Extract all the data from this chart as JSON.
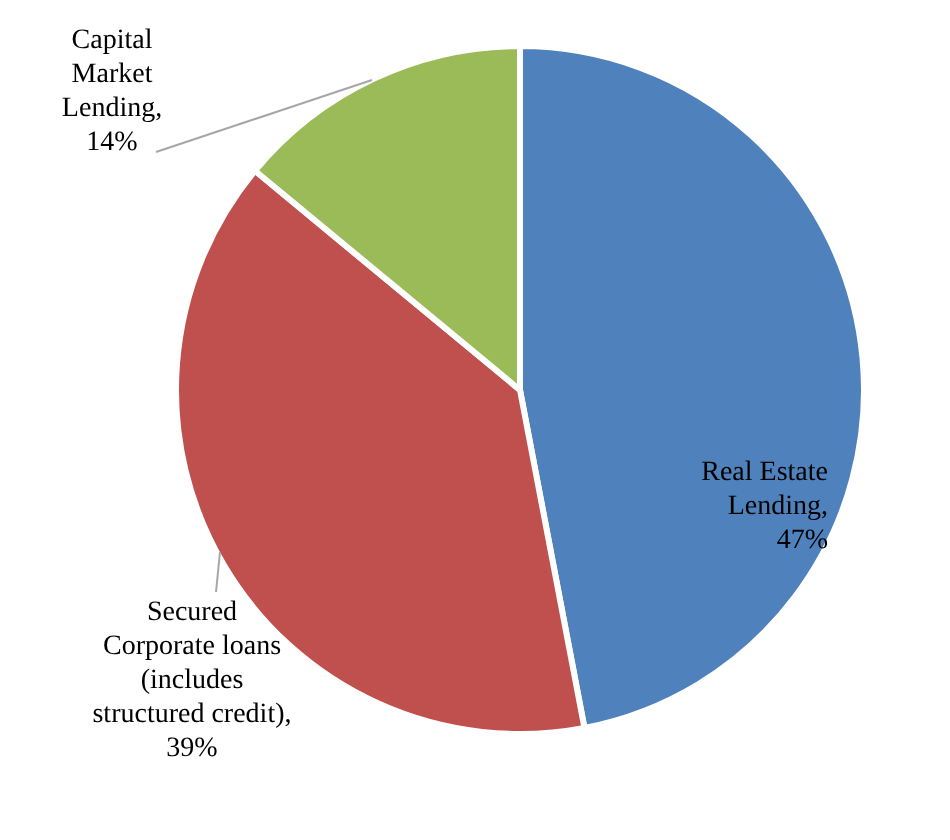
{
  "chart_data": {
    "type": "pie",
    "categories": [
      "Real Estate Lending",
      "Secured Corporate loans (includes structured credit)",
      "Capital Market Lending"
    ],
    "values": [
      47,
      39,
      14
    ],
    "value_labels": [
      ", 47%",
      ", 39%",
      ", 14%"
    ],
    "colors": [
      "#4f81bd",
      "#c0504d",
      "#9bbb59"
    ]
  }
}
